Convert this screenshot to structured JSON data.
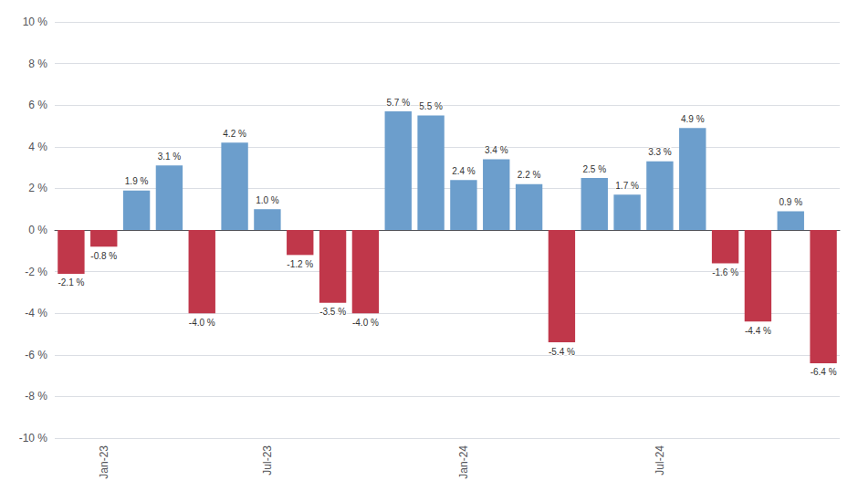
{
  "chart_data": {
    "type": "bar",
    "categories": [
      null,
      "Jan-23",
      null,
      null,
      null,
      null,
      "Jul-23",
      null,
      null,
      null,
      null,
      null,
      "Jan-24",
      null,
      null,
      null,
      null,
      null,
      "Jul-24",
      null,
      null,
      null,
      null,
      null
    ],
    "values": [
      -2.1,
      -0.8,
      1.9,
      3.1,
      -4.0,
      4.2,
      1.0,
      -1.2,
      -3.5,
      -4.0,
      5.7,
      5.5,
      2.4,
      3.4,
      2.2,
      -5.4,
      2.5,
      1.7,
      3.3,
      4.9,
      -1.6,
      -4.4,
      0.9,
      -6.4
    ],
    "value_labels": [
      "-2.1 %",
      "-0.8 %",
      "1.9 %",
      "3.1 %",
      "-4.0 %",
      "4.2 %",
      "1.0 %",
      "-1.2 %",
      "-3.5 %",
      "-4.0 %",
      "5.7 %",
      "5.5 %",
      "2.4 %",
      "3.4 %",
      "2.2 %",
      "-5.4 %",
      "2.5 %",
      "1.7 %",
      "3.3 %",
      "4.9 %",
      "-1.6 %",
      "-4.4 %",
      "0.9 %",
      "-6.4 %"
    ],
    "colors": [
      "#c0374a",
      "#c0374a",
      "#6c9ecc",
      "#6c9ecc",
      "#c0374a",
      "#6c9ecc",
      "#6c9ecc",
      "#c0374a",
      "#c0374a",
      "#c0374a",
      "#6c9ecc",
      "#6c9ecc",
      "#6c9ecc",
      "#6c9ecc",
      "#6c9ecc",
      "#c0374a",
      "#6c9ecc",
      "#6c9ecc",
      "#6c9ecc",
      "#6c9ecc",
      "#c0374a",
      "#c0374a",
      "#6c9ecc",
      "#c0374a"
    ],
    "ylim": [
      -10,
      10
    ],
    "yticks": [
      {
        "value": -10,
        "label": "-10 %"
      },
      {
        "value": -8,
        "label": "-8 %"
      },
      {
        "value": -6,
        "label": "-6 %"
      },
      {
        "value": -4,
        "label": "-4 %"
      },
      {
        "value": -2,
        "label": "-2 %"
      },
      {
        "value": 0,
        "label": "0 %"
      },
      {
        "value": 2,
        "label": "2 %"
      },
      {
        "value": 4,
        "label": "4 %"
      },
      {
        "value": 6,
        "label": "6 %"
      },
      {
        "value": 8,
        "label": "8 %"
      },
      {
        "value": 10,
        "label": "10 %"
      }
    ],
    "grid": true,
    "data_labels": true
  }
}
